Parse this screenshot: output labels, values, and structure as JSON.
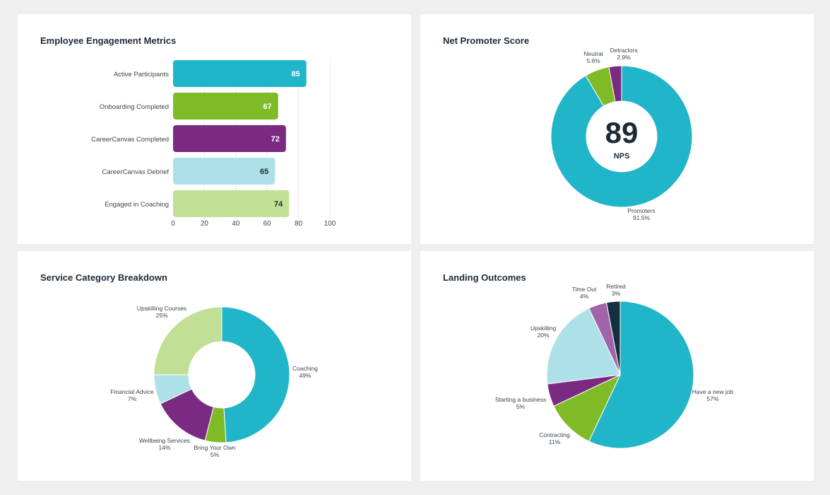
{
  "chart_data": [
    {
      "type": "bar",
      "orientation": "horizontal",
      "title": "Employee Engagement Metrics",
      "categories": [
        "Active Participants",
        "Onboarding Completed",
        "CareerCanvas Completed",
        "CareerCanvas Debrief",
        "Engaged in Coaching"
      ],
      "values": [
        85,
        67,
        72,
        65,
        74
      ],
      "colors": [
        "#20b5c8",
        "#7fba27",
        "#7b2a82",
        "#aee0e7",
        "#c2df96"
      ],
      "label_colors": [
        "#ffffff",
        "#ffffff",
        "#ffffff",
        "#1d2b36",
        "#1d2b36"
      ],
      "xlim": [
        0,
        100
      ],
      "xticks": [
        0,
        20,
        40,
        60,
        80,
        100
      ],
      "grid": true
    },
    {
      "type": "pie",
      "donut": true,
      "title": "Net Promoter Score",
      "center_value": "89",
      "center_label": "NPS",
      "slices": [
        {
          "label": "Promoters",
          "value": 91.5,
          "display": "91.5%",
          "color": "#20b5c8"
        },
        {
          "label": "Neutral",
          "value": 5.6,
          "display": "5.6%",
          "color": "#7fba27"
        },
        {
          "label": "Detractors",
          "value": 2.9,
          "display": "2.9%",
          "color": "#7b2a82"
        }
      ]
    },
    {
      "type": "pie",
      "donut": true,
      "title": "Service Category Breakdown",
      "slices": [
        {
          "label": "Coaching",
          "value": 49,
          "display": "49%",
          "color": "#20b5c8"
        },
        {
          "label": "Bring Your Own",
          "value": 5,
          "display": "5%",
          "color": "#7fba27"
        },
        {
          "label": "Wellbeing Services",
          "value": 14,
          "display": "14%",
          "color": "#7b2a82"
        },
        {
          "label": "Financial Advice",
          "value": 7,
          "display": "7%",
          "color": "#aee0e7"
        },
        {
          "label": "Upskilling Courses",
          "value": 25,
          "display": "25%",
          "color": "#c2df96"
        }
      ]
    },
    {
      "type": "pie",
      "donut": false,
      "title": "Landing Outcomes",
      "slices": [
        {
          "label": "Have a new job",
          "value": 57,
          "display": "57%",
          "color": "#20b5c8"
        },
        {
          "label": "Contracting",
          "value": 11,
          "display": "11%",
          "color": "#7fba27"
        },
        {
          "label": "Starting a business",
          "value": 5,
          "display": "5%",
          "color": "#7b2a82"
        },
        {
          "label": "Upskilling",
          "value": 20,
          "display": "20%",
          "color": "#aee0e7"
        },
        {
          "label": "Time Out",
          "value": 4,
          "display": "4%",
          "color": "#a264a9"
        },
        {
          "label": "Retired",
          "value": 3,
          "display": "3%",
          "color": "#14303e"
        }
      ]
    }
  ]
}
